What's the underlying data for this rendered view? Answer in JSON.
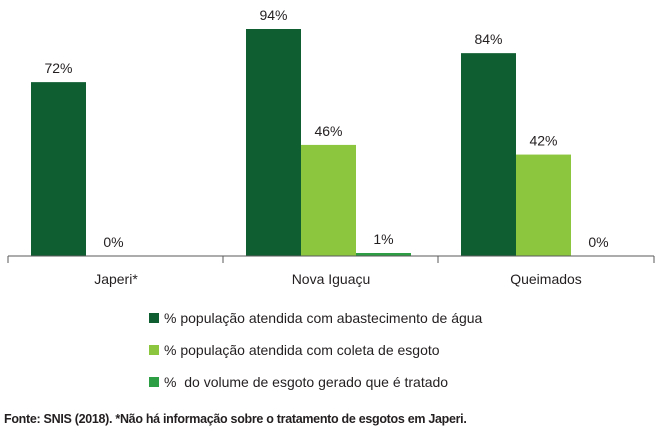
{
  "chart_data": {
    "type": "bar",
    "categories": [
      "Japeri*",
      "Nova Iguaçu",
      "Queimados"
    ],
    "series": [
      {
        "name": "% população atendida com abastecimento de água",
        "values": [
          72,
          94,
          84
        ],
        "labels": [
          "72%",
          "94%",
          "84%"
        ],
        "color": "#0f5e32"
      },
      {
        "name": "% população atendida com coleta de esgoto",
        "values": [
          0,
          46,
          42
        ],
        "labels": [
          "0%",
          "46%",
          "42%"
        ],
        "color": "#8cc63f"
      },
      {
        "name": "%  do volume de esgoto gerado que é tratado",
        "values": [
          null,
          1,
          0
        ],
        "labels": [
          "",
          "1%",
          "0%"
        ],
        "color": "#2e9e45"
      }
    ],
    "ylim": [
      0,
      100
    ],
    "legend_position": "bottom-center",
    "grid": false
  },
  "source_note": "Fonte: SNIS (2018). *Não há informação sobre o tratamento de esgotos em Japeri."
}
